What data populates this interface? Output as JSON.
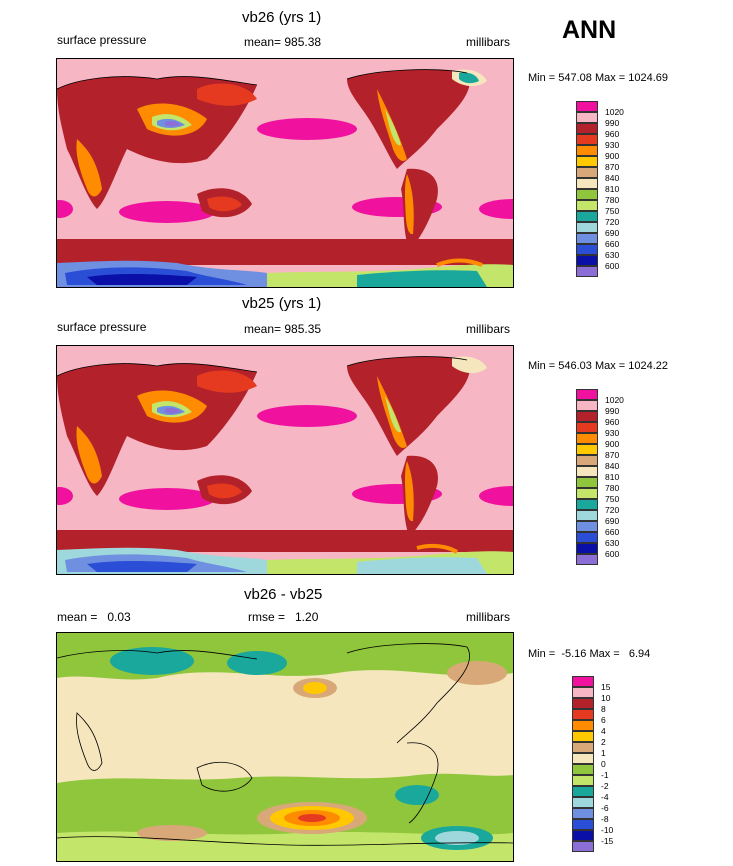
{
  "season": "ANN",
  "panels": [
    {
      "title": "vb26 (yrs 1)",
      "left_label": "surface pressure",
      "center_label": "mean= 985.38",
      "units": "millibars",
      "minmax": "Min = 547.08 Max = 1024.69",
      "colorbar": {
        "labels": [
          "1020",
          "990",
          "960",
          "930",
          "900",
          "870",
          "840",
          "810",
          "780",
          "750",
          "720",
          "690",
          "660",
          "630",
          "600"
        ],
        "colors": [
          "#f0119f",
          "#f7b6c4",
          "#b3222a",
          "#e63a20",
          "#ff8c00",
          "#ffc800",
          "#d9a878",
          "#f5e6bd",
          "#8fc63c",
          "#c3e66a",
          "#1aa89d",
          "#9fd8dc",
          "#6f8fe0",
          "#2a4fd6",
          "#0a0fa8",
          "#8b6fd6"
        ]
      }
    },
    {
      "title": "vb25 (yrs 1)",
      "left_label": "surface pressure",
      "center_label": "mean= 985.35",
      "units": "millibars",
      "minmax": "Min = 546.03 Max = 1024.22",
      "colorbar": {
        "labels": [
          "1020",
          "990",
          "960",
          "930",
          "900",
          "870",
          "840",
          "810",
          "780",
          "750",
          "720",
          "690",
          "660",
          "630",
          "600"
        ],
        "colors": [
          "#f0119f",
          "#f7b6c4",
          "#b3222a",
          "#e63a20",
          "#ff8c00",
          "#ffc800",
          "#d9a878",
          "#f5e6bd",
          "#8fc63c",
          "#c3e66a",
          "#1aa89d",
          "#9fd8dc",
          "#6f8fe0",
          "#2a4fd6",
          "#0a0fa8",
          "#8b6fd6"
        ]
      }
    },
    {
      "title": "vb26 - vb25",
      "left_label": "mean =   0.03",
      "center_label": "rmse =   1.20",
      "units": "millibars",
      "minmax": "Min =  -5.16 Max =   6.94",
      "colorbar": {
        "labels": [
          "15",
          "10",
          "8",
          "6",
          "4",
          "2",
          "1",
          "0",
          "-1",
          "-2",
          "-4",
          "-6",
          "-8",
          "-10",
          "-15"
        ],
        "colors": [
          "#f0119f",
          "#f7b6c4",
          "#b3222a",
          "#e63a20",
          "#ff8c00",
          "#ffc800",
          "#d9a878",
          "#f5e6bd",
          "#8fc63c",
          "#c3e66a",
          "#1aa89d",
          "#9fd8dc",
          "#6f8fe0",
          "#2a4fd6",
          "#0a0fa8",
          "#8b6fd6"
        ]
      }
    }
  ]
}
